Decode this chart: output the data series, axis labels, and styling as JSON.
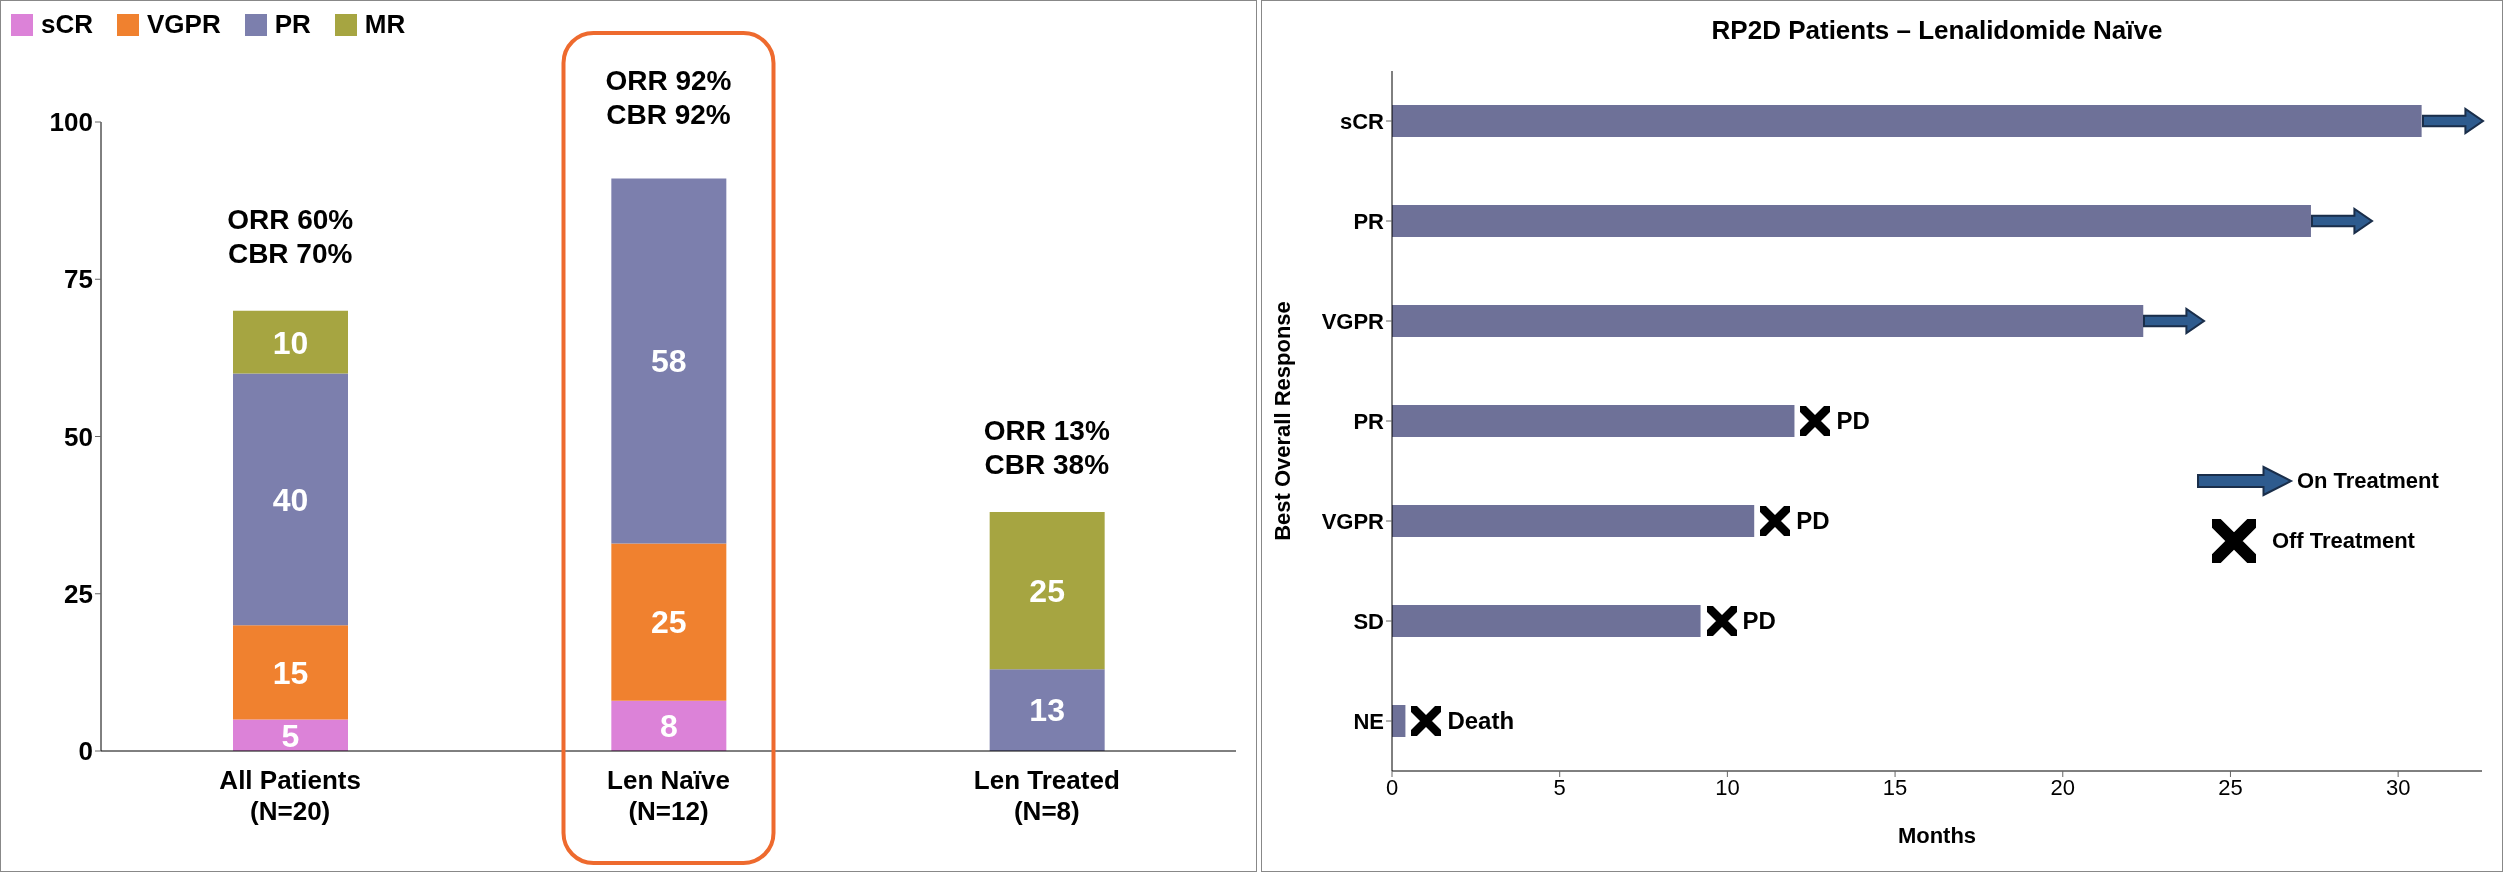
{
  "chart_data": [
    {
      "type": "bar",
      "stacked": true,
      "categories": [
        "All Patients\n(N=20)",
        "Len Naïve\n(N=12)",
        "Len Treated\n(N=8)"
      ],
      "series": [
        {
          "name": "sCR",
          "color": "#dc82d8",
          "values": [
            5,
            8,
            null
          ]
        },
        {
          "name": "VGPR",
          "color": "#f0812f",
          "values": [
            15,
            25,
            null
          ]
        },
        {
          "name": "PR",
          "color": "#7c7fad",
          "values": [
            40,
            58,
            13
          ]
        },
        {
          "name": "MR",
          "color": "#a6a541",
          "values": [
            10,
            null,
            25
          ]
        }
      ],
      "ylim": [
        0,
        100
      ],
      "yticks": [
        0,
        25,
        50,
        75,
        100
      ],
      "legend": "top left",
      "data_labels": true,
      "annotations": [
        {
          "text": "ORR 60%\nCBR 70%",
          "x": "All Patients\n(N=20)",
          "y": 70
        },
        {
          "text": "ORR 92%\nCBR 92%",
          "x": "Len Naïve\n(N=12)",
          "y": 91
        },
        {
          "text": "ORR 13%\nCBR 38%",
          "x": "Len Treated\n(N=8)",
          "y": 38
        }
      ]
    },
    {
      "type": "bar",
      "orientation": "horizontal",
      "title": "RP2D Patients – Lenalidomide Naïve",
      "xlabel": "Months",
      "ylabel": "Best Overall Response",
      "categories": [
        "sCR",
        "PR",
        "VGPR",
        "PR",
        "VGPR",
        "SD",
        "NE"
      ],
      "values": [
        30.7,
        27.4,
        22.4,
        12.0,
        10.8,
        9.2,
        0.4
      ],
      "color": "#6e7198",
      "xlim": [
        0,
        32.5
      ],
      "xticks": [
        0,
        5,
        10,
        15,
        20,
        25,
        30
      ],
      "annotations": [
        "PD",
        "PD",
        "PD",
        "Death",
        "On Treatment",
        "Off Treatment"
      ]
    }
  ]
}
